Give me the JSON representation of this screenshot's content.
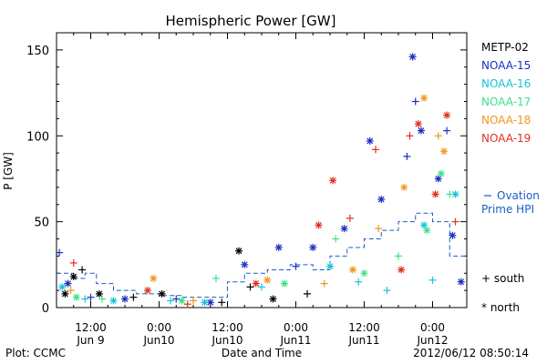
{
  "chart_data": {
    "type": "scatter",
    "title": "Hemispheric Power [GW]",
    "ylabel": "P [GW]",
    "xlabel": "Date and Time",
    "ylim": [
      0,
      160
    ],
    "yticks": [
      0,
      50,
      100,
      150
    ],
    "xlim": [
      "2012-06-09 06:00",
      "2012-06-12 06:00"
    ],
    "xticks": [
      {
        "time": "2012-06-09 12:00",
        "top": "12:00",
        "bottom": "Jun 9"
      },
      {
        "time": "2012-06-10 00:00",
        "top": "0:00",
        "bottom": "Jun10"
      },
      {
        "time": "2012-06-10 12:00",
        "top": "12:00",
        "bottom": "Jun10"
      },
      {
        "time": "2012-06-11 00:00",
        "top": "0:00",
        "bottom": "Jun11"
      },
      {
        "time": "2012-06-11 12:00",
        "top": "12:00",
        "bottom": "Jun11"
      },
      {
        "time": "2012-06-12 00:00",
        "top": "0:00",
        "bottom": "Jun12"
      }
    ],
    "grid": false,
    "legend_position": "right",
    "series": [
      {
        "name": "METP-02",
        "color": "#000000",
        "points": [
          {
            "t": "2012-06-09 07:30",
            "v": 8,
            "m": "north"
          },
          {
            "t": "2012-06-09 09:00",
            "v": 18,
            "m": "north"
          },
          {
            "t": "2012-06-09 10:30",
            "v": 22,
            "m": "south"
          },
          {
            "t": "2012-06-09 13:30",
            "v": 8,
            "m": "north"
          },
          {
            "t": "2012-06-09 19:30",
            "v": 6,
            "m": "south"
          },
          {
            "t": "2012-06-10 00:30",
            "v": 8,
            "m": "north"
          },
          {
            "t": "2012-06-10 11:00",
            "v": 3,
            "m": "south"
          },
          {
            "t": "2012-06-10 14:00",
            "v": 33,
            "m": "north"
          },
          {
            "t": "2012-06-10 16:00",
            "v": 12,
            "m": "south"
          },
          {
            "t": "2012-06-10 20:00",
            "v": 5,
            "m": "north"
          },
          {
            "t": "2012-06-11 02:00",
            "v": 8,
            "m": "south"
          }
        ]
      },
      {
        "name": "NOAA-15",
        "color": "#1a2ec4",
        "points": [
          {
            "t": "2012-06-09 06:30",
            "v": 32,
            "m": "south"
          },
          {
            "t": "2012-06-09 08:00",
            "v": 14,
            "m": "north"
          },
          {
            "t": "2012-06-09 12:00",
            "v": 6,
            "m": "south"
          },
          {
            "t": "2012-06-09 18:00",
            "v": 5,
            "m": "north"
          },
          {
            "t": "2012-06-10 03:00",
            "v": 5,
            "m": "south"
          },
          {
            "t": "2012-06-10 09:00",
            "v": 3,
            "m": "north"
          },
          {
            "t": "2012-06-10 15:00",
            "v": 25,
            "m": "north"
          },
          {
            "t": "2012-06-10 21:00",
            "v": 35,
            "m": "north"
          },
          {
            "t": "2012-06-11 00:00",
            "v": 24,
            "m": "south"
          },
          {
            "t": "2012-06-11 03:00",
            "v": 35,
            "m": "north"
          },
          {
            "t": "2012-06-11 08:30",
            "v": 46,
            "m": "north"
          },
          {
            "t": "2012-06-11 13:00",
            "v": 97,
            "m": "north"
          },
          {
            "t": "2012-06-11 15:00",
            "v": 63,
            "m": "north"
          },
          {
            "t": "2012-06-11 19:30",
            "v": 88,
            "m": "south"
          },
          {
            "t": "2012-06-11 20:30",
            "v": 146,
            "m": "north"
          },
          {
            "t": "2012-06-11 21:00",
            "v": 120,
            "m": "south"
          },
          {
            "t": "2012-06-11 22:00",
            "v": 103,
            "m": "north"
          },
          {
            "t": "2012-06-12 02:30",
            "v": 103,
            "m": "south"
          },
          {
            "t": "2012-06-12 01:00",
            "v": 75,
            "m": "north"
          },
          {
            "t": "2012-06-12 03:30",
            "v": 42,
            "m": "north"
          },
          {
            "t": "2012-06-12 05:00",
            "v": 15,
            "m": "north"
          }
        ]
      },
      {
        "name": "NOAA-16",
        "color": "#16c4d8",
        "points": [
          {
            "t": "2012-06-09 07:00",
            "v": 12,
            "m": "north"
          },
          {
            "t": "2012-06-09 11:00",
            "v": 5,
            "m": "south"
          },
          {
            "t": "2012-06-09 16:00",
            "v": 4,
            "m": "north"
          },
          {
            "t": "2012-06-10 02:00",
            "v": 4,
            "m": "south"
          },
          {
            "t": "2012-06-10 08:00",
            "v": 3,
            "m": "north"
          },
          {
            "t": "2012-06-10 18:00",
            "v": 12,
            "m": "south"
          },
          {
            "t": "2012-06-11 06:00",
            "v": 24,
            "m": "north"
          },
          {
            "t": "2012-06-11 11:00",
            "v": 15,
            "m": "south"
          },
          {
            "t": "2012-06-11 16:00",
            "v": 10,
            "m": "south"
          },
          {
            "t": "2012-06-11 22:30",
            "v": 48,
            "m": "north"
          },
          {
            "t": "2012-06-12 00:00",
            "v": 16,
            "m": "south"
          },
          {
            "t": "2012-06-12 04:00",
            "v": 66,
            "m": "north"
          }
        ]
      },
      {
        "name": "NOAA-17",
        "color": "#3ee08a",
        "points": [
          {
            "t": "2012-06-09 09:30",
            "v": 6,
            "m": "north"
          },
          {
            "t": "2012-06-09 14:00",
            "v": 5,
            "m": "south"
          },
          {
            "t": "2012-06-10 04:00",
            "v": 4,
            "m": "north"
          },
          {
            "t": "2012-06-10 10:00",
            "v": 17,
            "m": "south"
          },
          {
            "t": "2012-06-10 22:00",
            "v": 14,
            "m": "north"
          },
          {
            "t": "2012-06-11 07:00",
            "v": 40,
            "m": "south"
          },
          {
            "t": "2012-06-11 12:00",
            "v": 20,
            "m": "north"
          },
          {
            "t": "2012-06-11 18:00",
            "v": 30,
            "m": "south"
          },
          {
            "t": "2012-06-11 23:00",
            "v": 45,
            "m": "north"
          },
          {
            "t": "2012-06-12 01:30",
            "v": 78,
            "m": "north"
          },
          {
            "t": "2012-06-12 03:00",
            "v": 66,
            "m": "south"
          }
        ]
      },
      {
        "name": "NOAA-18",
        "color": "#f0961e",
        "points": [
          {
            "t": "2012-06-09 08:30",
            "v": 10,
            "m": "south"
          },
          {
            "t": "2012-06-09 23:00",
            "v": 17,
            "m": "north"
          },
          {
            "t": "2012-06-10 06:00",
            "v": 4,
            "m": "south"
          },
          {
            "t": "2012-06-10 19:00",
            "v": 16,
            "m": "north"
          },
          {
            "t": "2012-06-11 05:00",
            "v": 14,
            "m": "south"
          },
          {
            "t": "2012-06-11 10:00",
            "v": 22,
            "m": "north"
          },
          {
            "t": "2012-06-11 14:30",
            "v": 46,
            "m": "south"
          },
          {
            "t": "2012-06-11 19:00",
            "v": 70,
            "m": "north"
          },
          {
            "t": "2012-06-11 22:30",
            "v": 122,
            "m": "north"
          },
          {
            "t": "2012-06-12 01:00",
            "v": 100,
            "m": "south"
          },
          {
            "t": "2012-06-12 02:00",
            "v": 91,
            "m": "north"
          }
        ]
      },
      {
        "name": "NOAA-19",
        "color": "#e0301e",
        "points": [
          {
            "t": "2012-06-09 09:00",
            "v": 26,
            "m": "south"
          },
          {
            "t": "2012-06-09 22:00",
            "v": 10,
            "m": "north"
          },
          {
            "t": "2012-06-10 05:00",
            "v": 2,
            "m": "south"
          },
          {
            "t": "2012-06-10 17:00",
            "v": 14,
            "m": "north"
          },
          {
            "t": "2012-06-11 04:00",
            "v": 48,
            "m": "north"
          },
          {
            "t": "2012-06-11 06:30",
            "v": 74,
            "m": "north"
          },
          {
            "t": "2012-06-11 09:30",
            "v": 52,
            "m": "south"
          },
          {
            "t": "2012-06-11 14:00",
            "v": 92,
            "m": "south"
          },
          {
            "t": "2012-06-11 18:30",
            "v": 22,
            "m": "north"
          },
          {
            "t": "2012-06-11 20:00",
            "v": 100,
            "m": "south"
          },
          {
            "t": "2012-06-11 21:30",
            "v": 107,
            "m": "north"
          },
          {
            "t": "2012-06-12 00:30",
            "v": 66,
            "m": "north"
          },
          {
            "t": "2012-06-12 02:30",
            "v": 112,
            "m": "north"
          },
          {
            "t": "2012-06-12 04:00",
            "v": 50,
            "m": "south"
          }
        ]
      }
    ],
    "ovation": {
      "name_line1": "Ovation",
      "name_line2": "Prime HPI",
      "color": "#1a5ec4",
      "steps": [
        {
          "t": "2012-06-09 06:00",
          "v": 20
        },
        {
          "t": "2012-06-09 09:00",
          "v": 17
        },
        {
          "t": "2012-06-09 11:00",
          "v": 20
        },
        {
          "t": "2012-06-09 13:00",
          "v": 14
        },
        {
          "t": "2012-06-09 16:00",
          "v": 10
        },
        {
          "t": "2012-06-09 20:00",
          "v": 8
        },
        {
          "t": "2012-06-10 00:00",
          "v": 7
        },
        {
          "t": "2012-06-10 04:00",
          "v": 6
        },
        {
          "t": "2012-06-10 08:00",
          "v": 6
        },
        {
          "t": "2012-06-10 12:00",
          "v": 15
        },
        {
          "t": "2012-06-10 15:00",
          "v": 20
        },
        {
          "t": "2012-06-10 19:00",
          "v": 22
        },
        {
          "t": "2012-06-10 23:00",
          "v": 25
        },
        {
          "t": "2012-06-11 03:00",
          "v": 22
        },
        {
          "t": "2012-06-11 06:00",
          "v": 30
        },
        {
          "t": "2012-06-11 09:00",
          "v": 35
        },
        {
          "t": "2012-06-11 12:00",
          "v": 40
        },
        {
          "t": "2012-06-11 15:00",
          "v": 45
        },
        {
          "t": "2012-06-11 18:00",
          "v": 50
        },
        {
          "t": "2012-06-11 21:00",
          "v": 55
        },
        {
          "t": "2012-06-12 00:00",
          "v": 50
        },
        {
          "t": "2012-06-12 03:00",
          "v": 30
        },
        {
          "t": "2012-06-12 06:00",
          "v": 28
        }
      ]
    },
    "marker_legend": {
      "south": "+ south",
      "north": "* north"
    }
  },
  "footer": {
    "left": "Plot: CCMC",
    "right": "2012/06/12 08:50:14"
  }
}
